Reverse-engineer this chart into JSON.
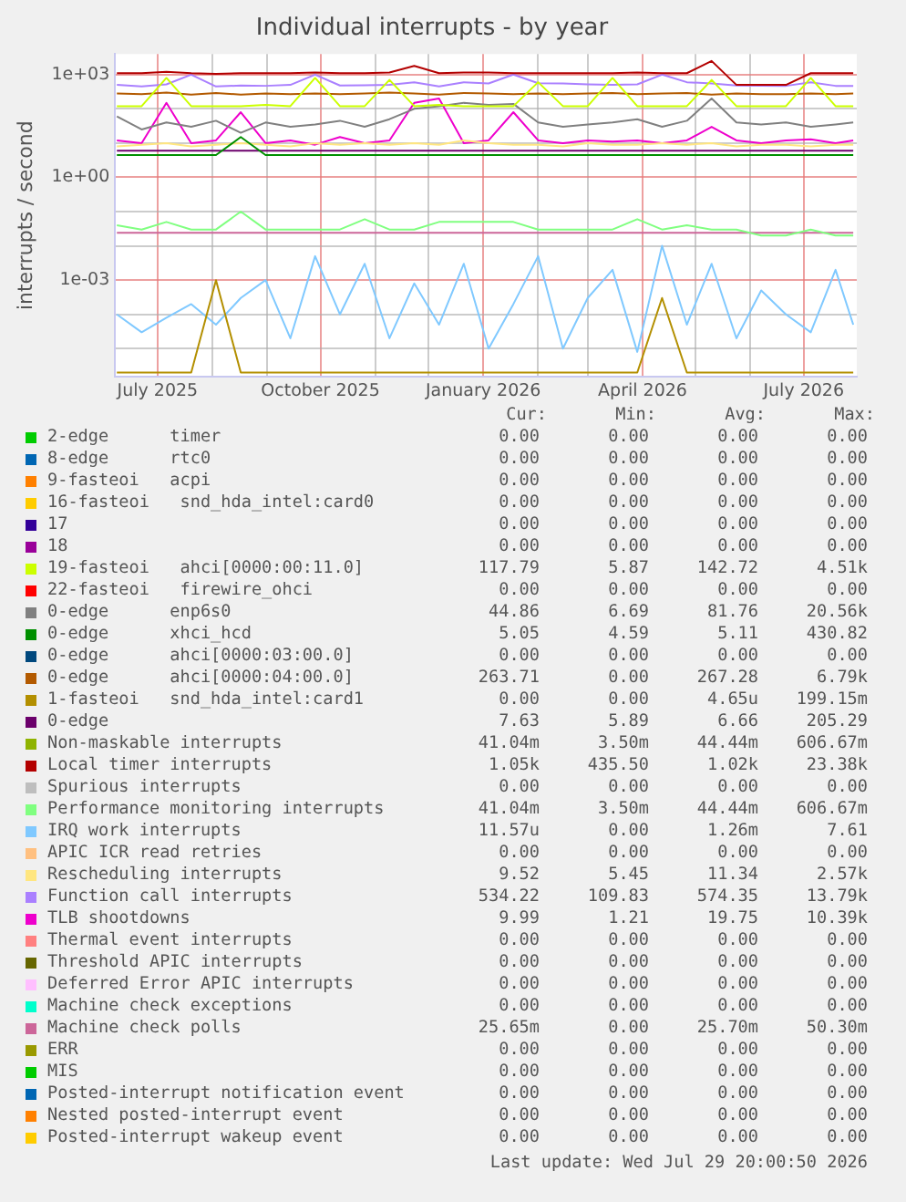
{
  "chart_data": {
    "type": "line",
    "title": "Individual interrupts - by year",
    "ylabel": "interrupts / second",
    "log": true,
    "grid": true,
    "legend": "bottom",
    "x": [
      "2025-06-08",
      "2025-06-22",
      "2025-07-06",
      "2025-07-20",
      "2025-08-03",
      "2025-08-17",
      "2025-08-31",
      "2025-09-14",
      "2025-09-28",
      "2025-10-12",
      "2025-10-26",
      "2025-11-09",
      "2025-11-23",
      "2025-12-07",
      "2025-12-21",
      "2026-01-04",
      "2026-01-18",
      "2026-02-01",
      "2026-02-15",
      "2026-03-01",
      "2026-03-15",
      "2026-03-29",
      "2026-04-12",
      "2026-04-26",
      "2026-05-10",
      "2026-05-24",
      "2026-06-07",
      "2026-06-21",
      "2026-07-05",
      "2026-07-19",
      "2026-07-29"
    ],
    "xlim": [
      "2025-06-07",
      "2026-07-31"
    ],
    "xticks": [
      {
        "value": "2025-07-01",
        "label": "July 2025"
      },
      {
        "value": "2025-08-01",
        "label": null
      },
      {
        "value": "2025-09-01",
        "label": null
      },
      {
        "value": "2025-10-01",
        "label": "October 2025"
      },
      {
        "value": "2025-11-01",
        "label": null
      },
      {
        "value": "2025-12-01",
        "label": null
      },
      {
        "value": "2026-01-01",
        "label": "January 2026"
      },
      {
        "value": "2026-02-01",
        "label": null
      },
      {
        "value": "2026-03-01",
        "label": null
      },
      {
        "value": "2026-04-01",
        "label": "April 2026"
      },
      {
        "value": "2026-05-01",
        "label": null
      },
      {
        "value": "2026-06-01",
        "label": null
      },
      {
        "value": "2026-07-01",
        "label": "July 2026"
      }
    ],
    "ylim": [
      1.5e-06,
      4000
    ],
    "yticks": [
      {
        "value": 1000,
        "label": "1e+03"
      },
      {
        "value": 100,
        "label": null
      },
      {
        "value": 10,
        "label": null
      },
      {
        "value": 1,
        "label": "1e+00"
      },
      {
        "value": 0.1,
        "label": null
      },
      {
        "value": 0.01,
        "label": null
      },
      {
        "value": 0.001,
        "label": "1e-03"
      },
      {
        "value": 0.0001,
        "label": null
      },
      {
        "value": 1e-05,
        "label": null
      }
    ],
    "series": [
      {
        "name": "2-edge      timer",
        "color": "#00cc00",
        "values": [
          null,
          null,
          null,
          null,
          null,
          null,
          null,
          null,
          null,
          null,
          null,
          null,
          null,
          null,
          null,
          null,
          null,
          null,
          null,
          null,
          null,
          null,
          null,
          null,
          null,
          null,
          null,
          null,
          null,
          null,
          null
        ]
      },
      {
        "name": "8-edge      rtc0",
        "color": "#0066b3",
        "values": [
          null,
          null,
          null,
          null,
          null,
          null,
          null,
          null,
          null,
          null,
          null,
          null,
          null,
          null,
          null,
          null,
          null,
          null,
          null,
          null,
          null,
          null,
          null,
          null,
          null,
          null,
          null,
          null,
          null,
          null,
          null
        ]
      },
      {
        "name": "9-fasteoi   acpi",
        "color": "#ff8000",
        "values": [
          null,
          null,
          null,
          null,
          null,
          null,
          null,
          null,
          null,
          null,
          null,
          null,
          null,
          null,
          null,
          null,
          null,
          null,
          null,
          null,
          null,
          null,
          null,
          null,
          null,
          null,
          null,
          null,
          null,
          null,
          null
        ]
      },
      {
        "name": "16-fasteoi   snd_hda_intel:card0",
        "color": "#ffcc00",
        "values": [
          null,
          null,
          null,
          null,
          null,
          null,
          null,
          null,
          null,
          null,
          null,
          null,
          null,
          null,
          null,
          null,
          null,
          null,
          null,
          null,
          null,
          null,
          null,
          null,
          null,
          null,
          null,
          null,
          null,
          null,
          null
        ]
      },
      {
        "name": "17",
        "color": "#330099",
        "values": [
          null,
          null,
          null,
          null,
          null,
          null,
          null,
          null,
          null,
          null,
          null,
          null,
          null,
          null,
          null,
          null,
          null,
          null,
          null,
          null,
          null,
          null,
          null,
          null,
          null,
          null,
          null,
          null,
          null,
          null,
          null
        ]
      },
      {
        "name": "18",
        "color": "#990099",
        "values": [
          null,
          null,
          null,
          null,
          null,
          null,
          null,
          null,
          null,
          null,
          null,
          null,
          null,
          null,
          null,
          null,
          null,
          null,
          null,
          null,
          null,
          null,
          null,
          null,
          null,
          null,
          null,
          null,
          null,
          null,
          null
        ]
      },
      {
        "name": "19-fasteoi   ahci[0000:00:11.0]",
        "color": "#ccff00",
        "values": [
          120,
          120,
          800,
          120,
          120,
          120,
          130,
          120,
          800,
          120,
          120,
          700,
          120,
          130,
          120,
          120,
          120,
          600,
          120,
          120,
          800,
          120,
          120,
          120,
          700,
          120,
          120,
          120,
          800,
          120,
          120
        ]
      },
      {
        "name": "22-fasteoi   firewire_ohci",
        "color": "#ff0000",
        "values": [
          null,
          null,
          null,
          null,
          null,
          null,
          null,
          null,
          null,
          null,
          null,
          null,
          null,
          null,
          null,
          null,
          null,
          null,
          null,
          null,
          null,
          null,
          null,
          null,
          null,
          null,
          null,
          null,
          null,
          null,
          null
        ]
      },
      {
        "name": "0-edge      enp6s0",
        "color": "#808080",
        "values": [
          60,
          25,
          40,
          30,
          45,
          20,
          40,
          30,
          35,
          45,
          30,
          50,
          100,
          120,
          150,
          130,
          140,
          40,
          30,
          35,
          40,
          50,
          30,
          45,
          200,
          40,
          35,
          40,
          30,
          35,
          40
        ]
      },
      {
        "name": "0-edge      xhci_hcd",
        "color": "#008f00",
        "values": [
          4.5,
          4.5,
          4.5,
          4.5,
          4.5,
          15,
          4.5,
          4.5,
          4.5,
          4.5,
          4.5,
          4.5,
          4.5,
          4.5,
          4.5,
          4.5,
          4.5,
          4.5,
          4.5,
          4.5,
          4.5,
          4.5,
          4.5,
          4.5,
          4.5,
          4.5,
          4.5,
          4.5,
          4.5,
          4.5,
          4.5
        ]
      },
      {
        "name": "0-edge      ahci[0000:03:00.0]",
        "color": "#00487d",
        "values": [
          null,
          null,
          null,
          null,
          null,
          null,
          null,
          null,
          null,
          null,
          null,
          null,
          null,
          null,
          null,
          null,
          null,
          null,
          null,
          null,
          null,
          null,
          null,
          null,
          null,
          null,
          null,
          null,
          null,
          null,
          null
        ]
      },
      {
        "name": "0-edge      ahci[0000:04:00.0]",
        "color": "#b35a00",
        "values": [
          280,
          270,
          300,
          260,
          290,
          260,
          280,
          270,
          280,
          270,
          280,
          300,
          280,
          260,
          290,
          280,
          270,
          280,
          270,
          280,
          290,
          270,
          280,
          290,
          260,
          280,
          270,
          270,
          280,
          270,
          280
        ]
      },
      {
        "name": "1-fasteoi   snd_hda_intel:card1",
        "color": "#b38f00",
        "values": [
          2e-06,
          2e-06,
          2e-06,
          2e-06,
          0.001,
          2e-06,
          2e-06,
          2e-06,
          2e-06,
          2e-06,
          2e-06,
          2e-06,
          2e-06,
          2e-06,
          2e-06,
          2e-06,
          2e-06,
          2e-06,
          2e-06,
          2e-06,
          2e-06,
          2e-06,
          0.0003,
          2e-06,
          2e-06,
          2e-06,
          2e-06,
          2e-06,
          2e-06,
          2e-06,
          2e-06
        ]
      },
      {
        "name": "0-edge",
        "color": "#6b006b",
        "values": [
          6,
          6,
          6,
          6,
          6,
          6,
          6,
          6,
          6,
          6,
          6,
          6,
          6,
          6,
          6,
          6,
          6,
          6,
          6,
          6,
          6,
          6,
          6,
          6,
          6,
          6,
          6,
          6,
          6,
          6,
          6
        ]
      },
      {
        "name": "Non-maskable interrupts",
        "color": "#8fb300",
        "values": [
          null,
          null,
          null,
          null,
          null,
          null,
          null,
          null,
          null,
          null,
          null,
          null,
          null,
          null,
          null,
          null,
          null,
          null,
          null,
          null,
          null,
          null,
          null,
          null,
          null,
          null,
          null,
          null,
          null,
          null,
          null
        ]
      },
      {
        "name": "Local timer interrupts",
        "color": "#b30000",
        "values": [
          1100,
          1100,
          1200,
          1100,
          1050,
          1100,
          1100,
          1100,
          1150,
          1100,
          1100,
          1150,
          1800,
          1100,
          1150,
          1150,
          1100,
          1100,
          1100,
          1100,
          1100,
          1150,
          1100,
          1100,
          2500,
          500,
          500,
          500,
          1100,
          1100,
          1100
        ]
      },
      {
        "name": "Spurious interrupts",
        "color": "#bebebe",
        "values": [
          null,
          null,
          null,
          null,
          null,
          null,
          null,
          null,
          null,
          null,
          null,
          null,
          null,
          null,
          null,
          null,
          null,
          null,
          null,
          null,
          null,
          null,
          null,
          null,
          null,
          null,
          null,
          null,
          null,
          null,
          null
        ]
      },
      {
        "name": "Performance monitoring interrupts",
        "color": "#80ff80",
        "values": [
          0.04,
          0.03,
          0.05,
          0.03,
          0.03,
          0.1,
          0.03,
          0.03,
          0.03,
          0.03,
          0.06,
          0.03,
          0.03,
          0.05,
          0.05,
          0.05,
          0.05,
          0.03,
          0.03,
          0.03,
          0.03,
          0.06,
          0.03,
          0.04,
          0.03,
          0.03,
          0.02,
          0.02,
          0.03,
          0.02,
          0.02
        ]
      },
      {
        "name": "IRQ work interrupts",
        "color": "#80c9ff",
        "values": [
          0.0001,
          3e-05,
          8e-05,
          0.0002,
          5e-05,
          0.0003,
          0.001,
          2e-05,
          0.005,
          0.0001,
          0.003,
          2e-05,
          0.0008,
          5e-05,
          0.003,
          1e-05,
          0.0002,
          0.005,
          1e-05,
          0.0003,
          0.002,
          8e-06,
          0.01,
          5e-05,
          0.003,
          2e-05,
          0.0005,
          0.0001,
          3e-05,
          0.002,
          5e-05
        ]
      },
      {
        "name": "APIC ICR read retries",
        "color": "#ffc080",
        "values": [
          null,
          null,
          null,
          null,
          null,
          null,
          null,
          null,
          null,
          null,
          null,
          null,
          null,
          null,
          null,
          null,
          null,
          null,
          null,
          null,
          null,
          null,
          null,
          null,
          null,
          null,
          null,
          null,
          null,
          null,
          null
        ]
      },
      {
        "name": "Rescheduling interrupts",
        "color": "#ffe680",
        "values": [
          8,
          9,
          10,
          8,
          9,
          10,
          9,
          8,
          10,
          9,
          10,
          9,
          10,
          9,
          12,
          10,
          9,
          9,
          8,
          10,
          9,
          9,
          10,
          9,
          10,
          8,
          9,
          9,
          8,
          9,
          9
        ]
      },
      {
        "name": "Function call interrupts",
        "color": "#aa80ff",
        "values": [
          500,
          450,
          520,
          1000,
          450,
          480,
          470,
          500,
          1000,
          480,
          490,
          500,
          600,
          450,
          600,
          550,
          1000,
          560,
          550,
          520,
          500,
          520,
          1000,
          600,
          550,
          480,
          470,
          470,
          600,
          470,
          470
        ]
      },
      {
        "name": "TLB shootdowns",
        "color": "#ee00cc",
        "values": [
          12,
          10,
          150,
          10,
          12,
          80,
          10,
          12,
          9,
          15,
          10,
          12,
          150,
          200,
          10,
          12,
          80,
          12,
          10,
          12,
          11,
          12,
          10,
          12,
          30,
          12,
          10,
          12,
          13,
          10,
          12
        ]
      },
      {
        "name": "Thermal event interrupts",
        "color": "#ff8080",
        "values": [
          null,
          null,
          null,
          null,
          null,
          null,
          null,
          null,
          null,
          null,
          null,
          null,
          null,
          null,
          null,
          null,
          null,
          null,
          null,
          null,
          null,
          null,
          null,
          null,
          null,
          null,
          null,
          null,
          null,
          null,
          null
        ]
      },
      {
        "name": "Threshold APIC interrupts",
        "color": "#666600",
        "values": [
          null,
          null,
          null,
          null,
          null,
          null,
          null,
          null,
          null,
          null,
          null,
          null,
          null,
          null,
          null,
          null,
          null,
          null,
          null,
          null,
          null,
          null,
          null,
          null,
          null,
          null,
          null,
          null,
          null,
          null,
          null
        ]
      },
      {
        "name": "Deferred Error APIC interrupts",
        "color": "#ffbfff",
        "values": [
          null,
          null,
          null,
          null,
          null,
          null,
          null,
          null,
          null,
          null,
          null,
          null,
          null,
          null,
          null,
          null,
          null,
          null,
          null,
          null,
          null,
          null,
          null,
          null,
          null,
          null,
          null,
          null,
          null,
          null,
          null
        ]
      },
      {
        "name": "Machine check exceptions",
        "color": "#00ffcc",
        "values": [
          null,
          null,
          null,
          null,
          null,
          null,
          null,
          null,
          null,
          null,
          null,
          null,
          null,
          null,
          null,
          null,
          null,
          null,
          null,
          null,
          null,
          null,
          null,
          null,
          null,
          null,
          null,
          null,
          null,
          null,
          null
        ]
      },
      {
        "name": "Machine check polls",
        "color": "#cc6699",
        "values": [
          0.024,
          0.024,
          0.024,
          0.024,
          0.024,
          0.024,
          0.024,
          0.024,
          0.024,
          0.024,
          0.024,
          0.024,
          0.024,
          0.024,
          0.024,
          0.024,
          0.024,
          0.024,
          0.024,
          0.024,
          0.024,
          0.024,
          0.024,
          0.024,
          0.024,
          0.024,
          0.024,
          0.024,
          0.024,
          0.024,
          0.024
        ]
      },
      {
        "name": "ERR",
        "color": "#999900",
        "values": [
          null,
          null,
          null,
          null,
          null,
          null,
          null,
          null,
          null,
          null,
          null,
          null,
          null,
          null,
          null,
          null,
          null,
          null,
          null,
          null,
          null,
          null,
          null,
          null,
          null,
          null,
          null,
          null,
          null,
          null,
          null
        ]
      },
      {
        "name": "MIS",
        "color": "#00cc00",
        "values": [
          null,
          null,
          null,
          null,
          null,
          null,
          null,
          null,
          null,
          null,
          null,
          null,
          null,
          null,
          null,
          null,
          null,
          null,
          null,
          null,
          null,
          null,
          null,
          null,
          null,
          null,
          null,
          null,
          null,
          null,
          null
        ]
      },
      {
        "name": "Posted-interrupt notification event",
        "color": "#0066b3",
        "values": [
          null,
          null,
          null,
          null,
          null,
          null,
          null,
          null,
          null,
          null,
          null,
          null,
          null,
          null,
          null,
          null,
          null,
          null,
          null,
          null,
          null,
          null,
          null,
          null,
          null,
          null,
          null,
          null,
          null,
          null,
          null
        ]
      },
      {
        "name": "Nested posted-interrupt event",
        "color": "#ff8000",
        "values": [
          null,
          null,
          null,
          null,
          null,
          null,
          null,
          null,
          null,
          null,
          null,
          null,
          null,
          null,
          null,
          null,
          null,
          null,
          null,
          null,
          null,
          null,
          null,
          null,
          null,
          null,
          null,
          null,
          null,
          null,
          null
        ]
      },
      {
        "name": "Posted-interrupt wakeup event",
        "color": "#ffcc00",
        "values": [
          null,
          null,
          null,
          null,
          null,
          null,
          null,
          null,
          null,
          null,
          null,
          null,
          null,
          null,
          null,
          null,
          null,
          null,
          null,
          null,
          null,
          null,
          null,
          null,
          null,
          null,
          null,
          null,
          null,
          null,
          null
        ]
      }
    ],
    "annotations": [
      "Cur: Min: Avg: Max:",
      "0.00 0.00 0.00 0.00",
      "0.00 0.00 0.00 0.00",
      "0.00 0.00 0.00 0.00",
      "0.00 0.00 0.00 0.00",
      "0.00 0.00 0.00 0.00",
      "0.00 0.00 0.00 0.00",
      "117.79 5.87 142.72 4.51k",
      "0.00 0.00 0.00 0.00",
      "44.86 6.69 81.76 20.56k",
      "5.05 4.59 5.11 430.82",
      "0.00 0.00 0.00 0.00",
      "263.71 0.00 267.28 6.79k",
      "0.00 0.00 4.65u 199.15m",
      "7.63 5.89 6.66 205.29",
      "41.04m 3.50m 44.44m 606.67m",
      "1.05k 435.50 1.02k 23.38k",
      "0.00 0.00 0.00 0.00",
      "41.04m 3.50m 44.44m 606.67m",
      "11.57u 0.00 1.26m 7.61",
      "0.00 0.00 0.00 0.00",
      "9.52 5.45 11.34 2.57k",
      "534.22 109.83 574.35 13.79k",
      "9.99 1.21 19.75 10.39k",
      "0.00 0.00 0.00 0.00",
      "0.00 0.00 0.00 0.00",
      "0.00 0.00 0.00 0.00",
      "0.00 0.00 0.00 0.00",
      "25.65m 0.00 25.70m 50.30m",
      "0.00 0.00 0.00 0.00",
      "0.00 0.00 0.00 0.00",
      "0.00 0.00 0.00 0.00",
      "0.00 0.00 0.00 0.00",
      "0.00 0.00 0.00 0.00",
      "Last update: Wed Jul 29 20:00:50 2026"
    ]
  }
}
